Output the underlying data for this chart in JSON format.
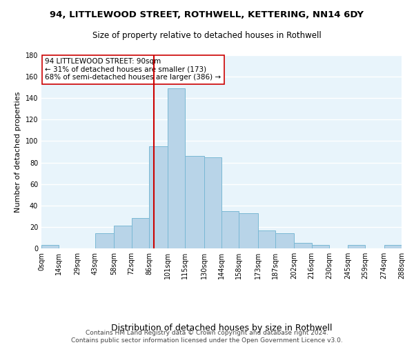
{
  "title1": "94, LITTLEWOOD STREET, ROTHWELL, KETTERING, NN14 6DY",
  "title2": "Size of property relative to detached houses in Rothwell",
  "xlabel": "Distribution of detached houses by size in Rothwell",
  "ylabel": "Number of detached properties",
  "bar_color": "#b8d4e8",
  "bar_edge_color": "#7ab8d4",
  "bg_color": "#e8f4fb",
  "grid_color": "#ffffff",
  "vline_x": 90,
  "vline_color": "#cc0000",
  "annotation_line1": "94 LITTLEWOOD STREET: 90sqm",
  "annotation_line2": "← 31% of detached houses are smaller (173)",
  "annotation_line3": "68% of semi-detached houses are larger (386) →",
  "annotation_box_color": "#ffffff",
  "annotation_box_edge": "#cc0000",
  "bin_edges": [
    0,
    14,
    29,
    43,
    58,
    72,
    86,
    101,
    115,
    130,
    144,
    158,
    173,
    187,
    202,
    216,
    230,
    245,
    259,
    274,
    288
  ],
  "bar_heights": [
    3,
    0,
    0,
    14,
    21,
    28,
    95,
    149,
    86,
    85,
    35,
    33,
    17,
    14,
    5,
    3,
    0,
    3,
    0,
    3
  ],
  "tick_labels": [
    "0sqm",
    "14sqm",
    "29sqm",
    "43sqm",
    "58sqm",
    "72sqm",
    "86sqm",
    "101sqm",
    "115sqm",
    "130sqm",
    "144sqm",
    "158sqm",
    "173sqm",
    "187sqm",
    "202sqm",
    "216sqm",
    "230sqm",
    "245sqm",
    "259sqm",
    "274sqm",
    "288sqm"
  ],
  "ylim": [
    0,
    180
  ],
  "yticks": [
    0,
    20,
    40,
    60,
    80,
    100,
    120,
    140,
    160,
    180
  ],
  "footer_line1": "Contains HM Land Registry data © Crown copyright and database right 2024.",
  "footer_line2": "Contains public sector information licensed under the Open Government Licence v3.0.",
  "title1_fontsize": 9.5,
  "title2_fontsize": 8.5,
  "xlabel_fontsize": 9,
  "ylabel_fontsize": 8,
  "tick_fontsize": 7,
  "footer_fontsize": 6.5,
  "annotation_fontsize": 7.5
}
